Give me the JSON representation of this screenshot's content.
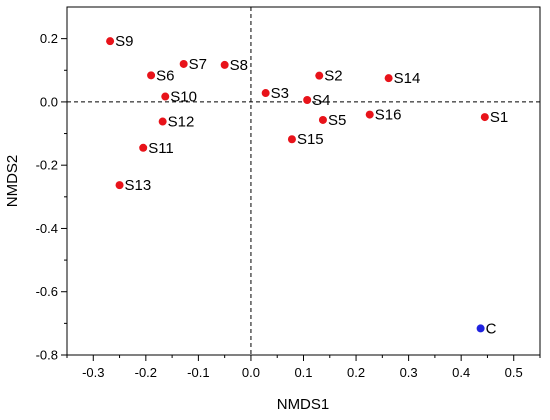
{
  "chart_data": {
    "type": "scatter",
    "title": "",
    "xlabel": "NMDS1",
    "ylabel": "NMDS2",
    "xlim": [
      -0.35,
      0.55
    ],
    "ylim": [
      -0.8,
      0.3
    ],
    "x_ticks": [
      -0.3,
      -0.2,
      -0.1,
      0.0,
      0.1,
      0.2,
      0.3,
      0.4,
      0.5
    ],
    "x_tick_labels": [
      "-0.3",
      "-0.2",
      "-0.1",
      "0.0",
      "0.1",
      "0.2",
      "0.3",
      "0.4",
      "0.5"
    ],
    "y_ticks": [
      0.2,
      0.0,
      -0.2,
      -0.4,
      -0.6,
      -0.8
    ],
    "y_tick_labels": [
      "0.2",
      "0.0",
      "-0.2",
      "-0.4",
      "-0.6",
      "-0.8"
    ],
    "reference_lines": {
      "x": 0.0,
      "y": 0.0,
      "style": "dashed"
    },
    "grid": false,
    "series": [
      {
        "color": "#e8131a",
        "points": [
          {
            "label": "S1",
            "x": 0.445,
            "y": -0.048
          },
          {
            "label": "S2",
            "x": 0.13,
            "y": 0.083
          },
          {
            "label": "S3",
            "x": 0.028,
            "y": 0.028
          },
          {
            "label": "S4",
            "x": 0.107,
            "y": 0.006
          },
          {
            "label": "S5",
            "x": 0.137,
            "y": -0.057
          },
          {
            "label": "S6",
            "x": -0.19,
            "y": 0.084
          },
          {
            "label": "S7",
            "x": -0.128,
            "y": 0.12
          },
          {
            "label": "S8",
            "x": -0.05,
            "y": 0.117
          },
          {
            "label": "S9",
            "x": -0.268,
            "y": 0.192
          },
          {
            "label": "S10",
            "x": -0.163,
            "y": 0.017
          },
          {
            "label": "S11",
            "x": -0.205,
            "y": -0.145
          },
          {
            "label": "S12",
            "x": -0.168,
            "y": -0.062
          },
          {
            "label": "S13",
            "x": -0.25,
            "y": -0.263
          },
          {
            "label": "S14",
            "x": 0.262,
            "y": 0.075
          },
          {
            "label": "S15",
            "x": 0.078,
            "y": -0.118
          },
          {
            "label": "S16",
            "x": 0.226,
            "y": -0.04
          }
        ]
      },
      {
        "color": "#1f22e0",
        "points": [
          {
            "label": "C",
            "x": 0.437,
            "y": -0.716
          }
        ]
      }
    ]
  }
}
